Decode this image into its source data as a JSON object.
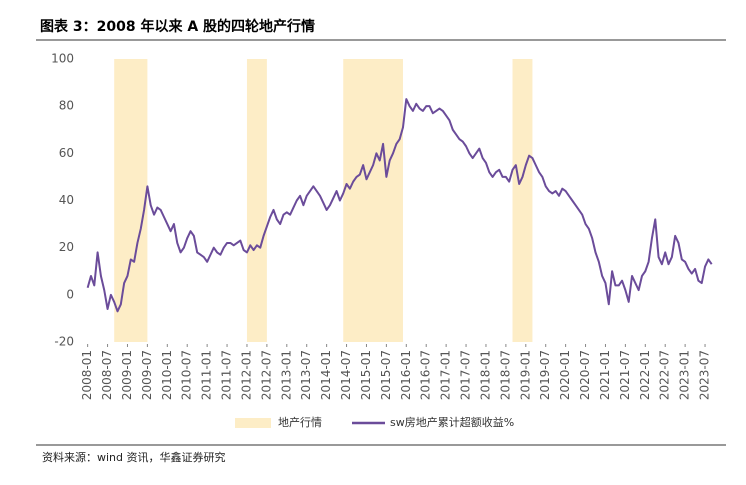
{
  "chart_data": {
    "type": "line",
    "title": "图表 3：2008 年以来 A 股的四轮地产行情",
    "source": "资料来源：wind 资讯，华鑫证券研究",
    "x": [
      "2008-01",
      "2008-02",
      "2008-03",
      "2008-04",
      "2008-05",
      "2008-06",
      "2008-07",
      "2008-08",
      "2008-09",
      "2008-10",
      "2008-11",
      "2008-12",
      "2009-01",
      "2009-02",
      "2009-03",
      "2009-04",
      "2009-05",
      "2009-06",
      "2009-07",
      "2009-08",
      "2009-09",
      "2009-10",
      "2009-11",
      "2009-12",
      "2010-01",
      "2010-02",
      "2010-03",
      "2010-04",
      "2010-05",
      "2010-06",
      "2010-07",
      "2010-08",
      "2010-09",
      "2010-10",
      "2010-11",
      "2010-12",
      "2011-01",
      "2011-02",
      "2011-03",
      "2011-04",
      "2011-05",
      "2011-06",
      "2011-07",
      "2011-08",
      "2011-09",
      "2011-10",
      "2011-11",
      "2011-12",
      "2012-01",
      "2012-02",
      "2012-03",
      "2012-04",
      "2012-05",
      "2012-06",
      "2012-07",
      "2012-08",
      "2012-09",
      "2012-10",
      "2012-11",
      "2012-12",
      "2013-01",
      "2013-02",
      "2013-03",
      "2013-04",
      "2013-05",
      "2013-06",
      "2013-07",
      "2013-08",
      "2013-09",
      "2013-10",
      "2013-11",
      "2013-12",
      "2014-01",
      "2014-02",
      "2014-03",
      "2014-04",
      "2014-05",
      "2014-06",
      "2014-07",
      "2014-08",
      "2014-09",
      "2014-10",
      "2014-11",
      "2014-12",
      "2015-01",
      "2015-02",
      "2015-03",
      "2015-04",
      "2015-05",
      "2015-06",
      "2015-07",
      "2015-08",
      "2015-09",
      "2015-10",
      "2015-11",
      "2015-12",
      "2016-01",
      "2016-02",
      "2016-03",
      "2016-04",
      "2016-05",
      "2016-06",
      "2016-07",
      "2016-08",
      "2016-09",
      "2016-10",
      "2016-11",
      "2016-12",
      "2017-01",
      "2017-02",
      "2017-03",
      "2017-04",
      "2017-05",
      "2017-06",
      "2017-07",
      "2017-08",
      "2017-09",
      "2017-10",
      "2017-11",
      "2017-12",
      "2018-01",
      "2018-02",
      "2018-03",
      "2018-04",
      "2018-05",
      "2018-06",
      "2018-07",
      "2018-08",
      "2018-09",
      "2018-10",
      "2018-11",
      "2018-12",
      "2019-01",
      "2019-02",
      "2019-03",
      "2019-04",
      "2019-05",
      "2019-06",
      "2019-07",
      "2019-08",
      "2019-09",
      "2019-10",
      "2019-11",
      "2019-12",
      "2020-01",
      "2020-02",
      "2020-03",
      "2020-04",
      "2020-05",
      "2020-06",
      "2020-07",
      "2020-08",
      "2020-09",
      "2020-10",
      "2020-11",
      "2020-12",
      "2021-01",
      "2021-02",
      "2021-03",
      "2021-04",
      "2021-05",
      "2021-06",
      "2021-07",
      "2021-08",
      "2021-09",
      "2021-10",
      "2021-11",
      "2021-12",
      "2022-01",
      "2022-02",
      "2022-03",
      "2022-04",
      "2022-05",
      "2022-06",
      "2022-07",
      "2022-08",
      "2022-09",
      "2022-10",
      "2022-11",
      "2022-12",
      "2023-01",
      "2023-02",
      "2023-03",
      "2023-04",
      "2023-05",
      "2023-06",
      "2023-07",
      "2023-08",
      "2023-09"
    ],
    "series": [
      {
        "name": "sw房地产累计超额收益%",
        "color": "#6b4c9a",
        "values": [
          3,
          8,
          4,
          18,
          8,
          2,
          -6,
          0,
          -3,
          -7,
          -4,
          5,
          8,
          15,
          14,
          22,
          28,
          36,
          46,
          38,
          34,
          37,
          36,
          33,
          30,
          27,
          30,
          22,
          18,
          20,
          24,
          27,
          25,
          18,
          17,
          16,
          14,
          17,
          20,
          18,
          17,
          20,
          22,
          22,
          21,
          22,
          23,
          19,
          18,
          21,
          19,
          21,
          20,
          25,
          29,
          33,
          36,
          32,
          30,
          34,
          35,
          34,
          37,
          40,
          42,
          38,
          42,
          44,
          46,
          44,
          42,
          39,
          36,
          38,
          41,
          44,
          40,
          43,
          47,
          45,
          48,
          50,
          51,
          55,
          49,
          52,
          55,
          60,
          57,
          64,
          50,
          57,
          60,
          64,
          66,
          71,
          83,
          80,
          78,
          81,
          79,
          78,
          80,
          80,
          77,
          78,
          79,
          78,
          76,
          74,
          70,
          68,
          66,
          65,
          63,
          60,
          58,
          60,
          62,
          58,
          56,
          52,
          50,
          52,
          53,
          50,
          50,
          48,
          53,
          55,
          47,
          50,
          55,
          59,
          58,
          55,
          52,
          50,
          46,
          44,
          43,
          44,
          42,
          45,
          44,
          42,
          40,
          38,
          36,
          34,
          30,
          28,
          24,
          18,
          14,
          8,
          5,
          -4,
          10,
          4,
          4,
          6,
          2,
          -3,
          8,
          5,
          2,
          8,
          10,
          14,
          24,
          32,
          16,
          13,
          18,
          13,
          16,
          25,
          22,
          15,
          14,
          11,
          9,
          11,
          6,
          5,
          12,
          15,
          13
        ]
      }
    ],
    "periods": {
      "name": "地产行情",
      "color": "#fdedc6",
      "ranges": [
        [
          "2008-09",
          "2009-07"
        ],
        [
          "2012-01",
          "2012-07"
        ],
        [
          "2014-06",
          "2015-12"
        ],
        [
          "2018-09",
          "2019-03"
        ]
      ]
    },
    "xlim": [
      "2007-11",
      "2023-10"
    ],
    "xticks": [
      "2008-01",
      "2008-07",
      "2009-01",
      "2009-07",
      "2010-01",
      "2010-07",
      "2011-01",
      "2011-07",
      "2012-01",
      "2012-07",
      "2013-01",
      "2013-07",
      "2014-01",
      "2014-07",
      "2015-01",
      "2015-07",
      "2016-01",
      "2016-07",
      "2017-01",
      "2017-07",
      "2018-01",
      "2018-07",
      "2019-01",
      "2019-07",
      "2020-01",
      "2020-07",
      "2021-01",
      "2021-07",
      "2022-01",
      "2022-07",
      "2023-01",
      "2023-07"
    ],
    "ylim": [
      -20,
      100
    ],
    "yticks": [
      100,
      80,
      60,
      40,
      20,
      0,
      -20
    ],
    "grid": false
  }
}
